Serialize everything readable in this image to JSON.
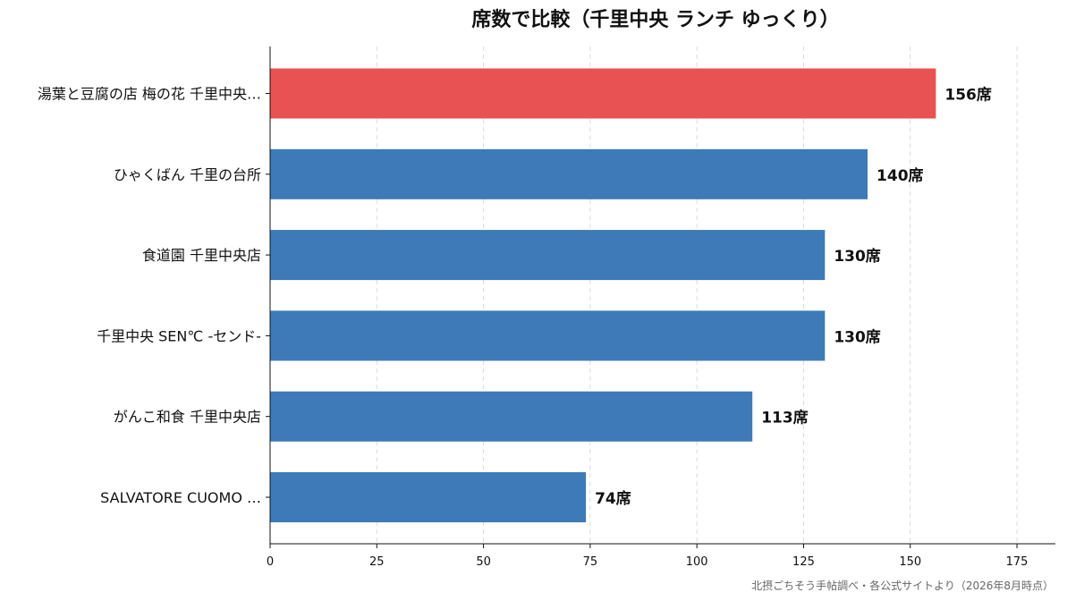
{
  "chart_data": {
    "type": "bar",
    "orientation": "horizontal",
    "title": "席数で比較（千里中央 ランチ ゆっくり）",
    "categories": [
      "湯葉と豆腐の店 梅の花 千里中央…",
      "ひゃくばん 千里の台所",
      "食道園 千里中央店",
      "千里中央 SEN℃ -センド-",
      "がんこ和食 千里中央店",
      "SALVATORE CUOMO …"
    ],
    "values": [
      156,
      140,
      130,
      130,
      113,
      74
    ],
    "value_labels": [
      "156席",
      "140席",
      "130席",
      "130席",
      "113席",
      "74席"
    ],
    "highlight_index": 0,
    "colors": {
      "default": "#3d7ab7",
      "highlight": "#e85253"
    },
    "xlim": [
      0,
      184
    ],
    "xticks": [
      0,
      25,
      50,
      75,
      100,
      125,
      150,
      175
    ],
    "grid": "vertical dashed",
    "legend": "none",
    "xlabel": "",
    "ylabel": ""
  },
  "source_note": "北摂ごちそう手帖調べ・各公式サイトより（2026年8月時点）"
}
